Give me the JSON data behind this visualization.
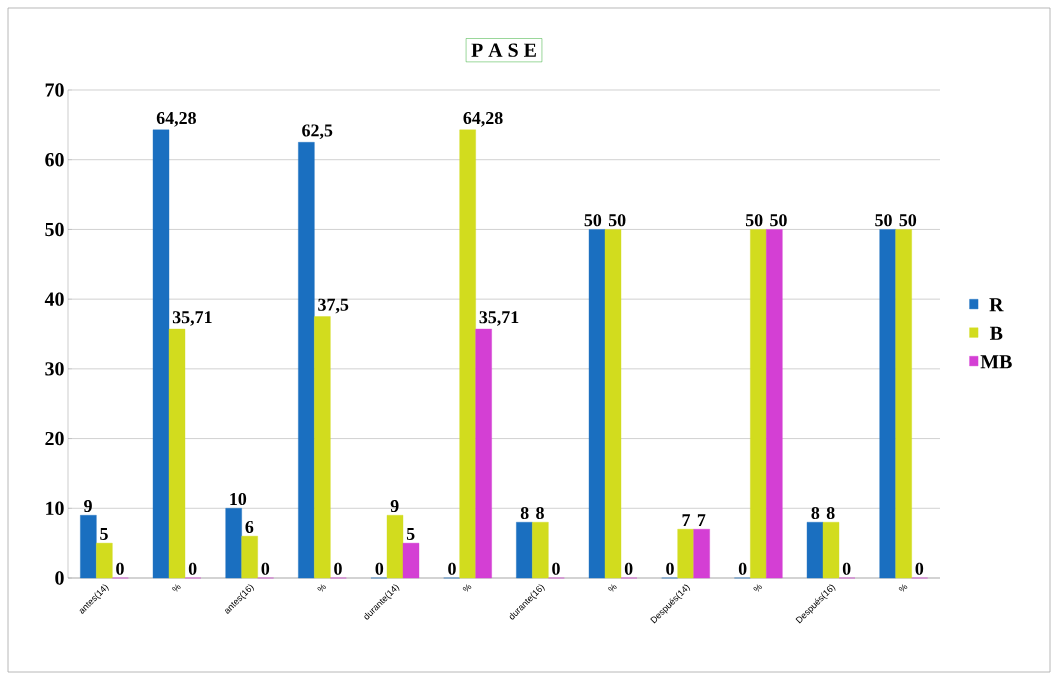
{
  "chart_data": {
    "type": "bar",
    "title": "P A S E",
    "categories": [
      "antes(14)",
      "%",
      "antes(16)",
      "%",
      "durante(14)",
      "%",
      "durante(16)",
      "%",
      "Después(14)",
      "%",
      "Después(16)",
      "%"
    ],
    "series": [
      {
        "name": "R",
        "color": "#1a6fc0",
        "values": [
          9,
          64.28,
          10,
          62.5,
          0,
          0,
          8,
          50,
          0,
          0,
          8,
          50
        ],
        "value_labels": [
          "9",
          "64,28",
          "10",
          "62,5",
          "0",
          "0",
          "8",
          "50",
          "0",
          "0",
          "8",
          "50"
        ]
      },
      {
        "name": "B",
        "color": "#d2dc1e",
        "values": [
          5,
          35.71,
          6,
          37.5,
          9,
          64.28,
          8,
          50,
          7,
          50,
          8,
          50
        ],
        "value_labels": [
          "5",
          "35,71",
          "6",
          "37,5",
          "9",
          "64,28",
          "8",
          "50",
          "7",
          "50",
          "8",
          "50"
        ]
      },
      {
        "name": "MB",
        "color": "#d43fd4",
        "values": [
          0,
          0,
          0,
          0,
          5,
          35.71,
          0,
          0,
          7,
          50,
          0,
          0
        ],
        "value_labels": [
          "0",
          "0",
          "0",
          "0",
          "5",
          "35,71",
          "0",
          "0",
          "7",
          "50",
          "0",
          "0"
        ]
      }
    ],
    "ylim": [
      0,
      70
    ],
    "yticks": [
      0,
      10,
      20,
      30,
      40,
      50,
      60,
      70
    ],
    "grid": "y",
    "legend": "right"
  }
}
